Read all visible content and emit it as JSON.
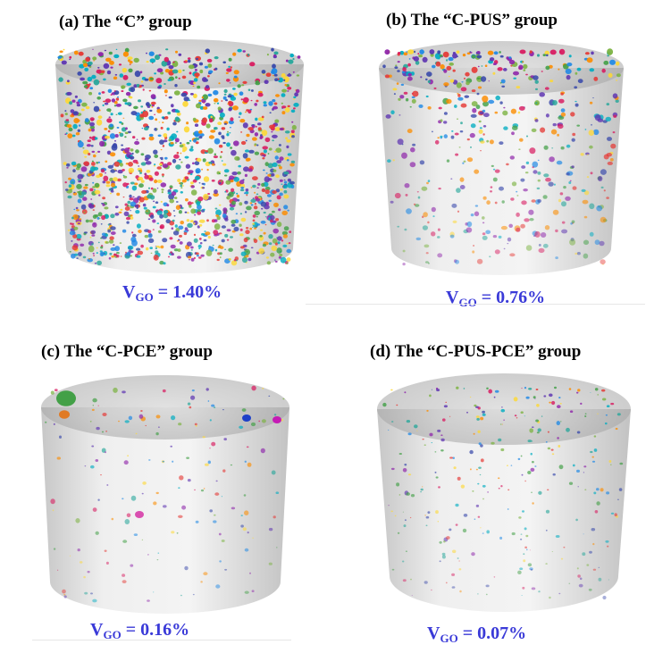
{
  "panels": [
    {
      "id": "a",
      "label": "(a) The “C” group",
      "vgo_symbol": "V",
      "vgo_sub": "GO",
      "vgo_value": " = 1.40%"
    },
    {
      "id": "b",
      "label": "(b) The “C-PUS” group",
      "vgo_symbol": "V",
      "vgo_sub": "GO",
      "vgo_value": " = 0.76%"
    },
    {
      "id": "c",
      "label": "(c) The “C-PCE” group",
      "vgo_symbol": "V",
      "vgo_sub": "GO",
      "vgo_value": " = 0.16%"
    },
    {
      "id": "d",
      "label": "(d) The “C-PUS-PCE” group",
      "vgo_symbol": "V",
      "vgo_sub": "GO",
      "vgo_value": " = 0.07%"
    }
  ],
  "particle_colors": [
    "#e53935",
    "#1e88e5",
    "#43a047",
    "#fdd835",
    "#8e24aa",
    "#00acc1",
    "#fb8c00",
    "#3949ab",
    "#d81b60",
    "#7cb342",
    "#26a69a",
    "#5e35b1"
  ]
}
